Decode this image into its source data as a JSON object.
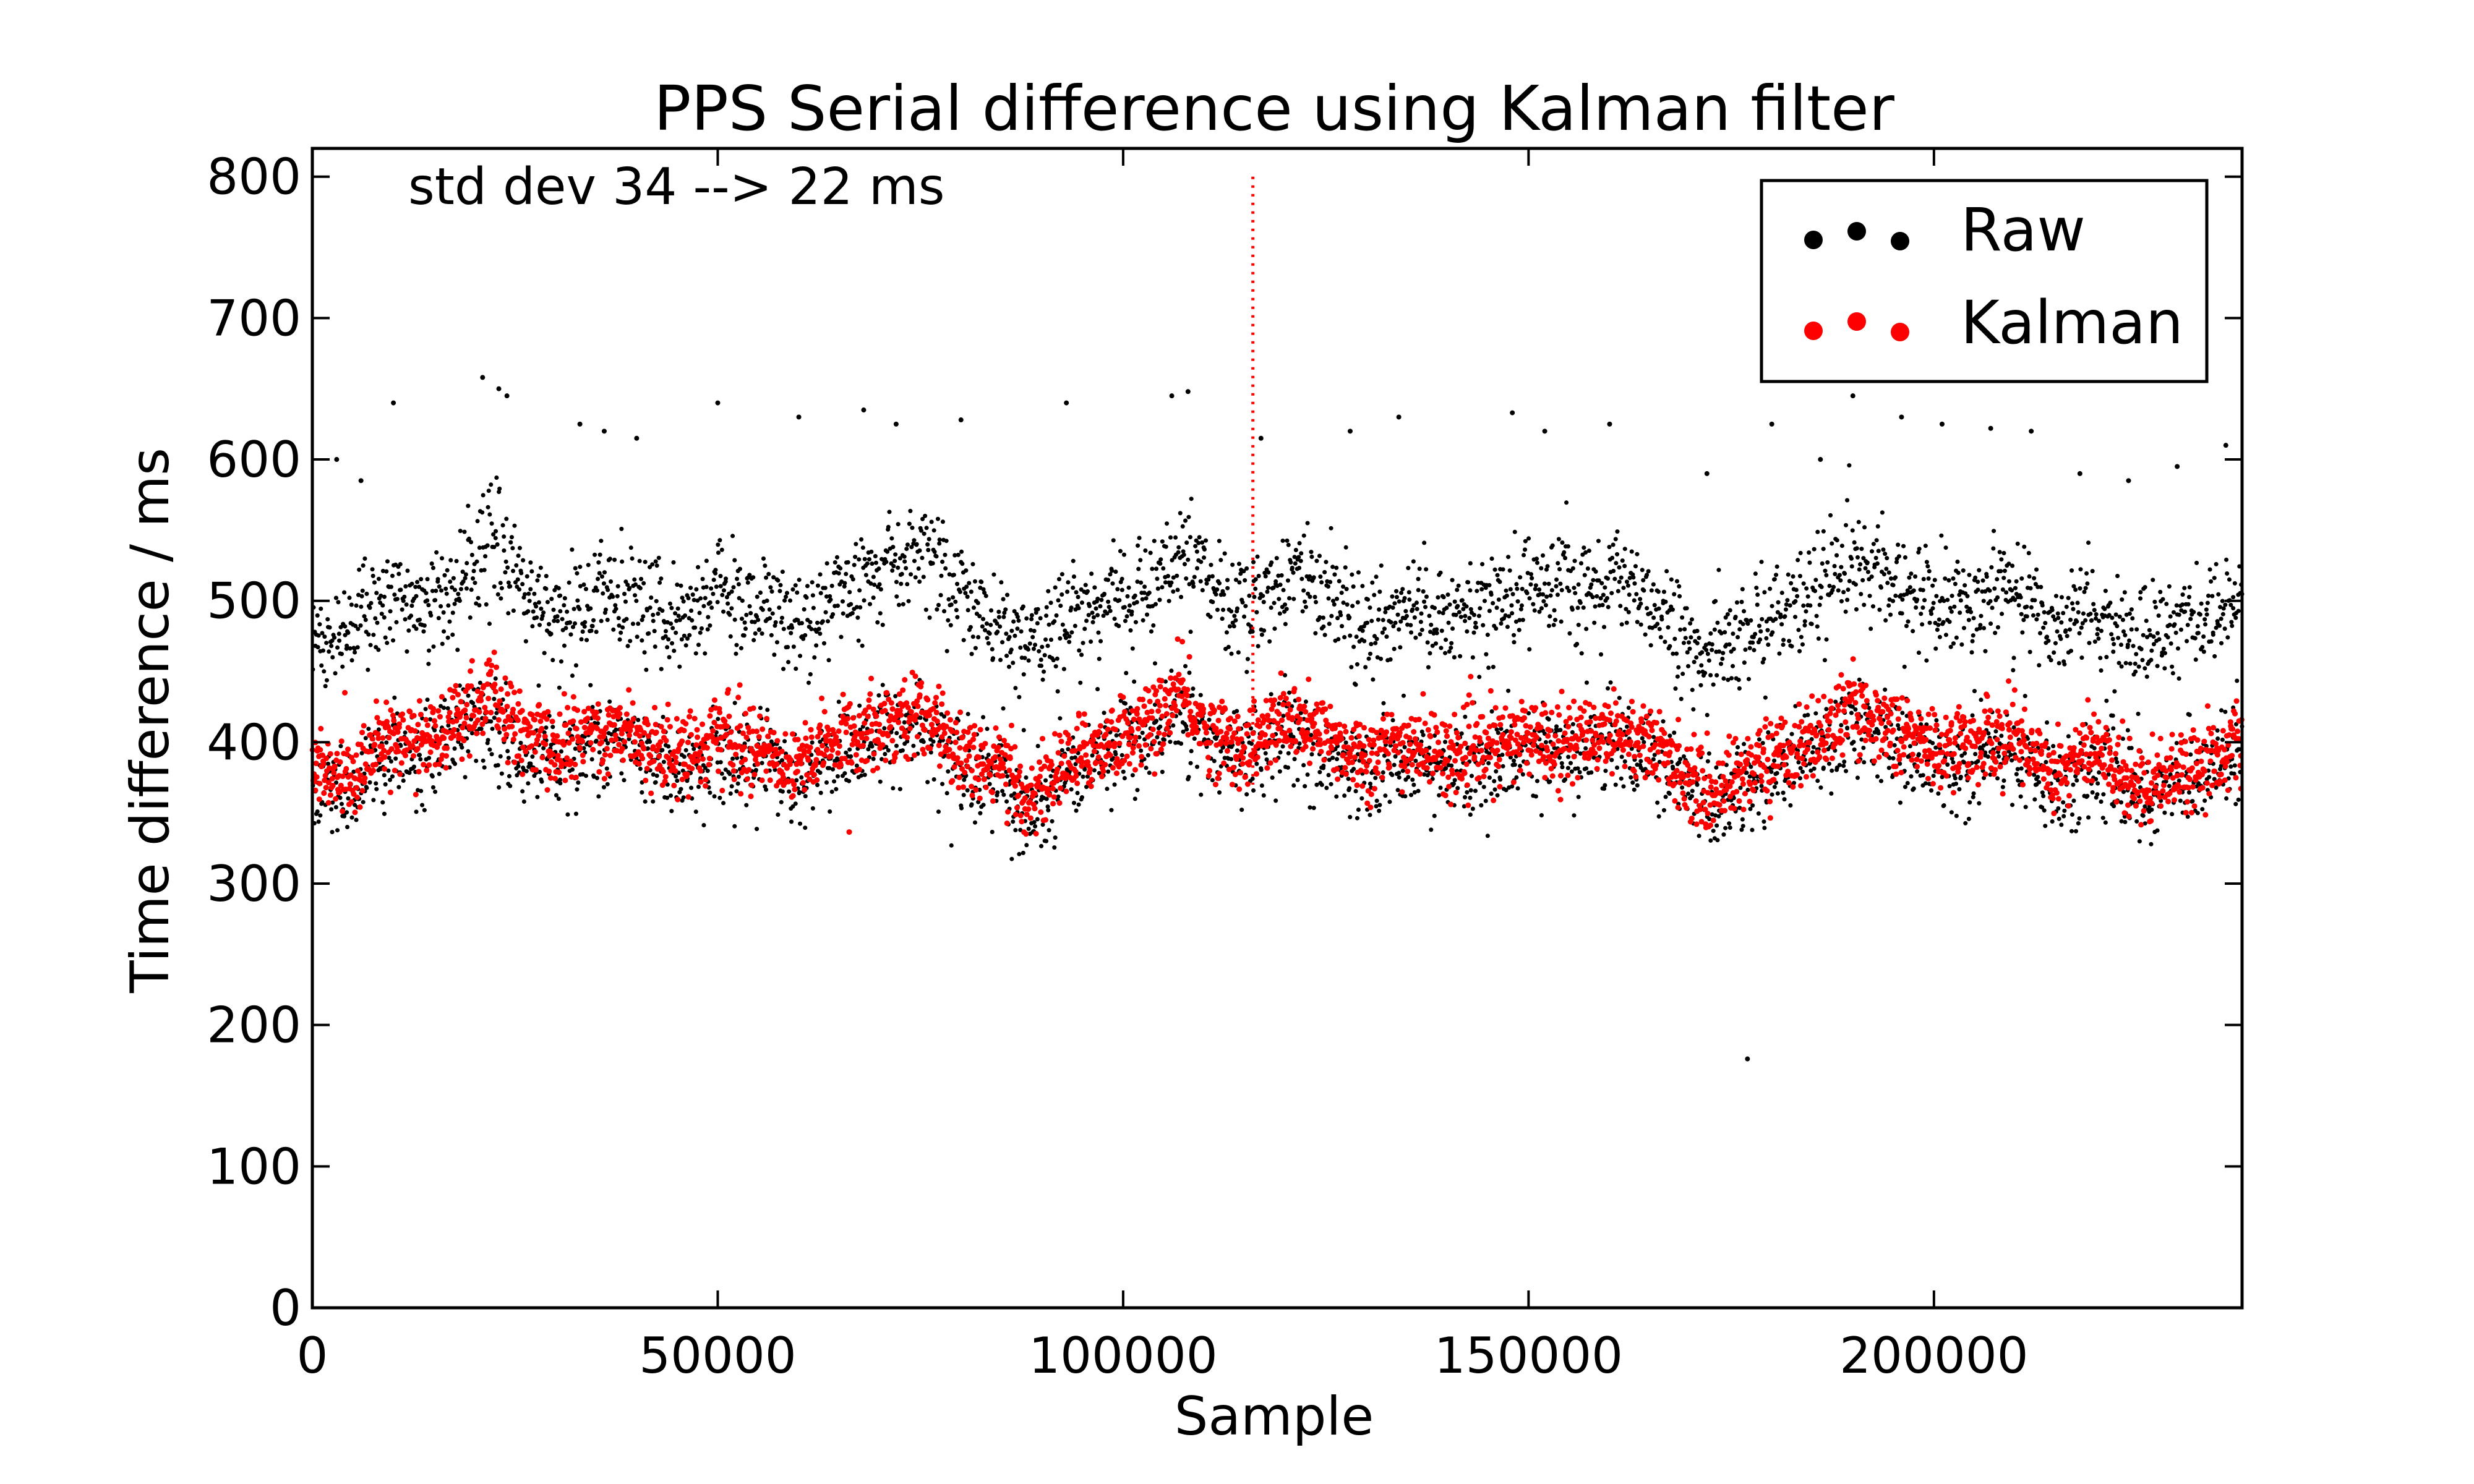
{
  "chart_data": {
    "type": "scatter",
    "title": "PPS Serial difference using Kalman filter",
    "xlabel": "Sample",
    "ylabel": "Time difference / ms",
    "xlim": [
      0,
      238000
    ],
    "ylim": [
      0,
      820
    ],
    "xticks": [
      0,
      50000,
      100000,
      150000,
      200000
    ],
    "xtick_labels": [
      "0",
      "50000",
      "100000",
      "150000",
      "200000"
    ],
    "yticks": [
      0,
      100,
      200,
      300,
      400,
      500,
      600,
      700,
      800
    ],
    "ytick_labels": [
      "0",
      "100",
      "200",
      "300",
      "400",
      "500",
      "600",
      "700",
      "800"
    ],
    "annotation": "std dev 34 --> 22 ms",
    "vline_x": 116000,
    "vline_color": "#ff0000",
    "legend_position": "top-right",
    "grid": false,
    "series": [
      {
        "name": "Raw",
        "color": "#000000",
        "marker": "dot",
        "description_points": "Two bands: upper band centered ~500 ms and lower band centered ~395 ms, plus sparse outliers 560-660 ms and one at ~176 ms near x=177000",
        "x": [
          0,
          5000,
          10000,
          15000,
          20000,
          22000,
          25000,
          30000,
          35000,
          40000,
          45000,
          50000,
          55000,
          60000,
          65000,
          70000,
          75000,
          80000,
          85000,
          88000,
          92000,
          96000,
          100000,
          104000,
          107000,
          110000,
          115000,
          120000,
          125000,
          130000,
          135000,
          140000,
          145000,
          150000,
          155000,
          160000,
          165000,
          170000,
          172000,
          175000,
          180000,
          185000,
          190000,
          195000,
          200000,
          205000,
          210000,
          215000,
          220000,
          225000,
          230000,
          235000,
          238000
        ],
        "y_upper_band": [
          470,
          480,
          505,
          500,
          530,
          545,
          520,
          480,
          510,
          495,
          480,
          510,
          495,
          480,
          505,
          520,
          535,
          505,
          480,
          470,
          480,
          495,
          505,
          510,
          535,
          510,
          495,
          520,
          505,
          480,
          500,
          490,
          495,
          510,
          505,
          515,
          500,
          470,
          455,
          470,
          490,
          505,
          530,
          515,
          495,
          500,
          510,
          480,
          495,
          470,
          480,
          490,
          500
        ],
        "y_lower_band": [
          370,
          365,
          395,
          390,
          415,
          420,
          395,
          385,
          400,
          395,
          380,
          395,
          385,
          375,
          390,
          405,
          410,
          385,
          370,
          350,
          370,
          385,
          395,
          405,
          420,
          400,
          385,
          405,
          395,
          380,
          390,
          380,
          385,
          395,
          390,
          400,
          390,
          365,
          350,
          365,
          380,
          390,
          415,
          400,
          385,
          390,
          395,
          370,
          385,
          360,
          370,
          380,
          390
        ],
        "outliers_x": [
          3000,
          6000,
          10000,
          21000,
          23000,
          24000,
          33000,
          36000,
          40000,
          50000,
          60000,
          68000,
          72000,
          80000,
          93000,
          106000,
          108000,
          117000,
          128000,
          134000,
          148000,
          152000,
          160000,
          172000,
          177000,
          180000,
          186000,
          190000,
          196000,
          201000,
          207000,
          212000,
          218000,
          224000,
          230000,
          236000
        ],
        "outliers_y": [
          600,
          585,
          640,
          658,
          650,
          645,
          625,
          620,
          615,
          640,
          630,
          635,
          625,
          628,
          640,
          645,
          648,
          615,
          620,
          630,
          633,
          620,
          625,
          590,
          176,
          625,
          600,
          645,
          630,
          625,
          622,
          620,
          590,
          585,
          595,
          610
        ]
      },
      {
        "name": "Kalman",
        "color": "#ff0000",
        "marker": "dot",
        "description_points": "Dense band centered ~405 ms tracking the lower Raw band",
        "x": [
          0,
          3000,
          6000,
          10000,
          15000,
          20000,
          22000,
          25000,
          30000,
          35000,
          40000,
          45000,
          50000,
          55000,
          60000,
          65000,
          70000,
          75000,
          80000,
          85000,
          88000,
          92000,
          96000,
          100000,
          104000,
          107000,
          110000,
          115000,
          120000,
          125000,
          130000,
          135000,
          140000,
          145000,
          150000,
          155000,
          160000,
          165000,
          170000,
          172000,
          175000,
          180000,
          185000,
          190000,
          195000,
          200000,
          205000,
          210000,
          215000,
          220000,
          225000,
          230000,
          235000,
          238000
        ],
        "y": [
          385,
          370,
          385,
          405,
          400,
          425,
          435,
          410,
          395,
          410,
          405,
          390,
          405,
          395,
          385,
          400,
          415,
          420,
          395,
          380,
          360,
          380,
          395,
          405,
          415,
          435,
          410,
          395,
          415,
          405,
          390,
          400,
          390,
          395,
          405,
          400,
          410,
          400,
          375,
          360,
          375,
          390,
          400,
          425,
          410,
          395,
          400,
          405,
          380,
          395,
          370,
          380,
          390,
          400
        ]
      }
    ]
  }
}
